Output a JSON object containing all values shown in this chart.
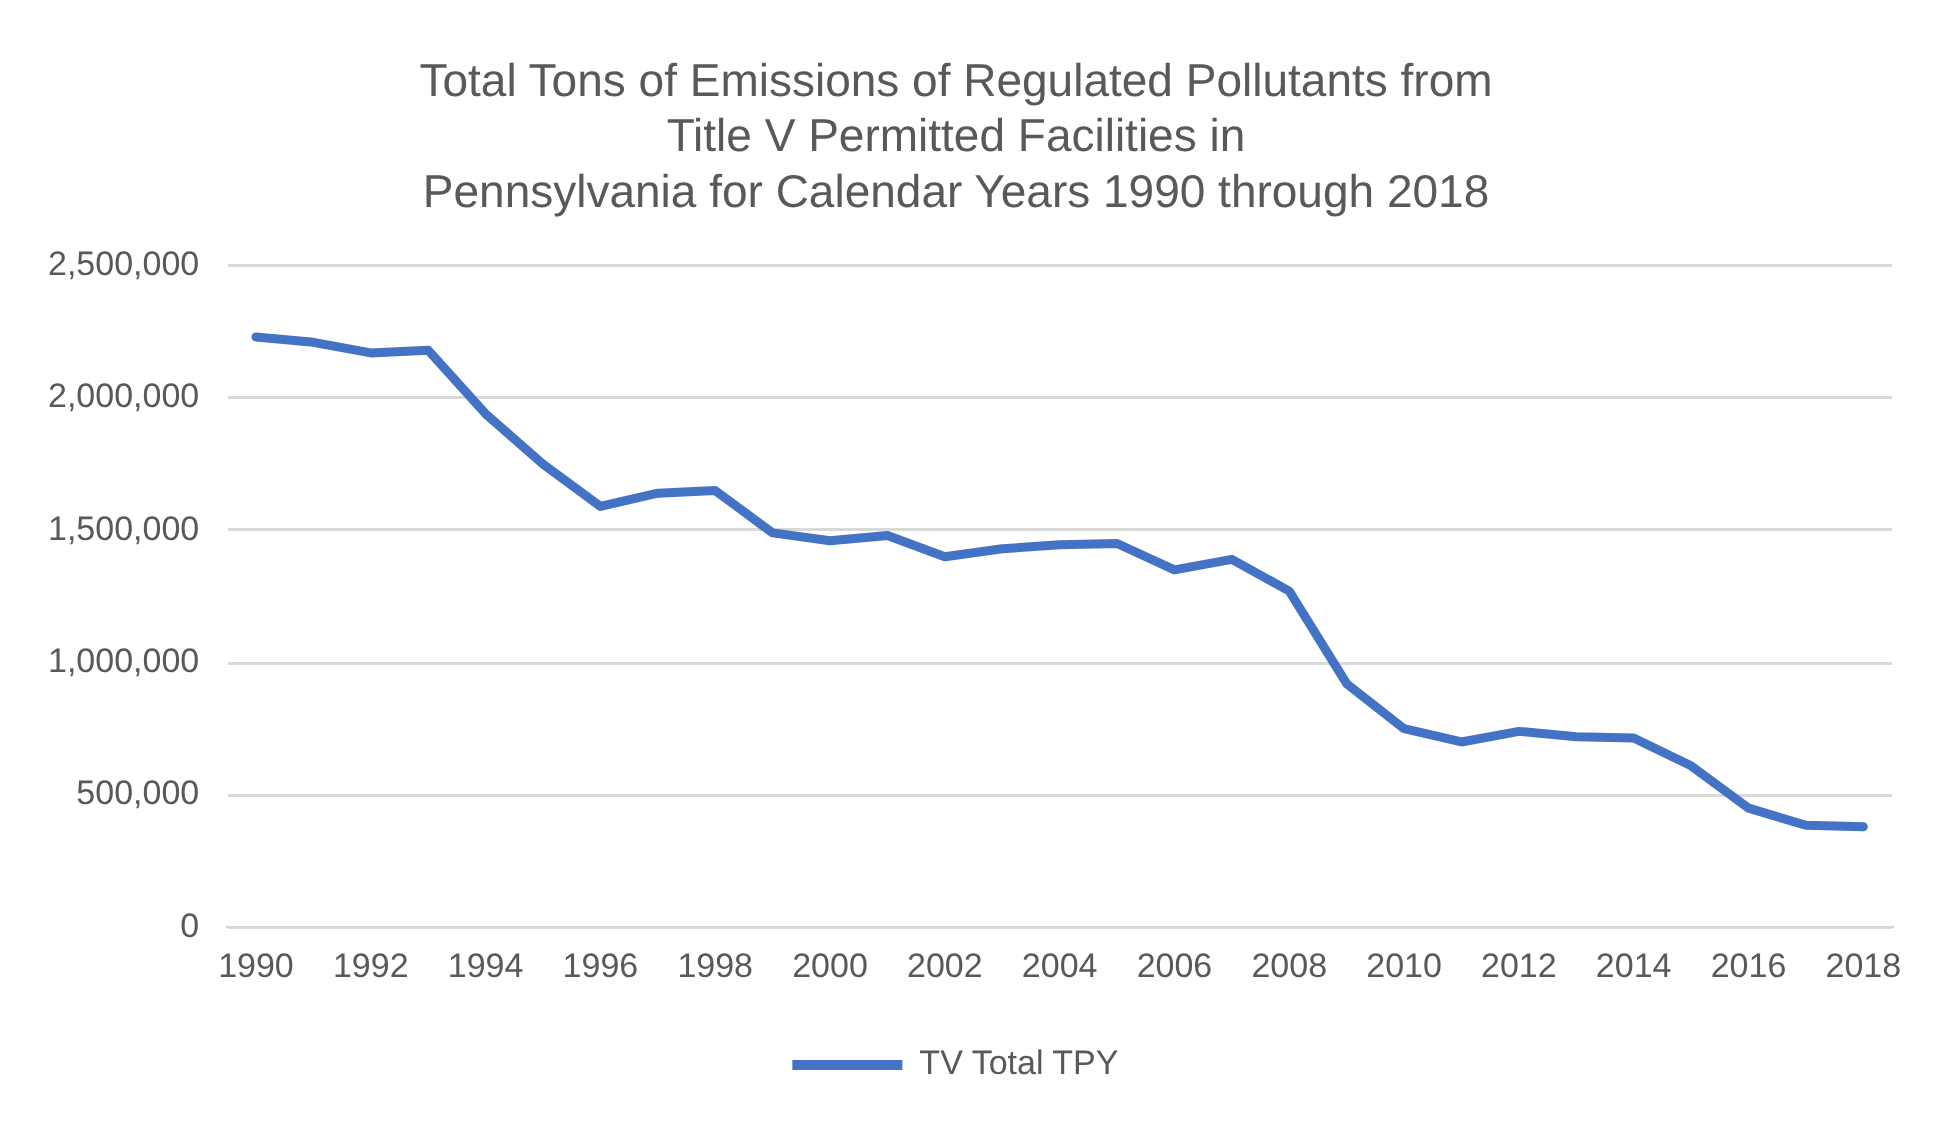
{
  "chart_data": {
    "type": "line",
    "title": "Total Tons of Emissions of Regulated Pollutants from\nTitle V Permitted Facilities in\nPennsylvania for Calendar Years 1990 through 2018",
    "categories": [
      "1990",
      null,
      "1992",
      null,
      "1994",
      null,
      "1996",
      null,
      "1998",
      null,
      "2000",
      null,
      "2002",
      null,
      "2004",
      null,
      "2006",
      null,
      "2008",
      null,
      "2010",
      null,
      "2012",
      null,
      "2014",
      null,
      "2016",
      null,
      "2018"
    ],
    "series": [
      {
        "name": "TV Total TPY",
        "color": "#4472c4",
        "values": [
          2230000,
          2210000,
          2170000,
          2180000,
          1940000,
          1750000,
          1590000,
          1640000,
          1650000,
          1490000,
          1460000,
          1480000,
          1400000,
          1430000,
          1445000,
          1450000,
          1350000,
          1390000,
          1270000,
          920000,
          750000,
          700000,
          740000,
          720000,
          715000,
          610000,
          450000,
          385000,
          380000
        ]
      }
    ],
    "ylim": [
      0,
      2500000
    ],
    "yticks": [
      0,
      {
        "value": 500000,
        "label": "500,000"
      },
      {
        "value": 1000000,
        "label": "1,000,000"
      },
      {
        "value": 1500000,
        "label": "1,500,000"
      },
      {
        "value": 2000000,
        "label": "2,000,000"
      },
      {
        "value": 2500000,
        "label": "2,500,000"
      }
    ],
    "grid": "y",
    "legend": "bottom",
    "marker": "none",
    "line_style": "solid"
  }
}
